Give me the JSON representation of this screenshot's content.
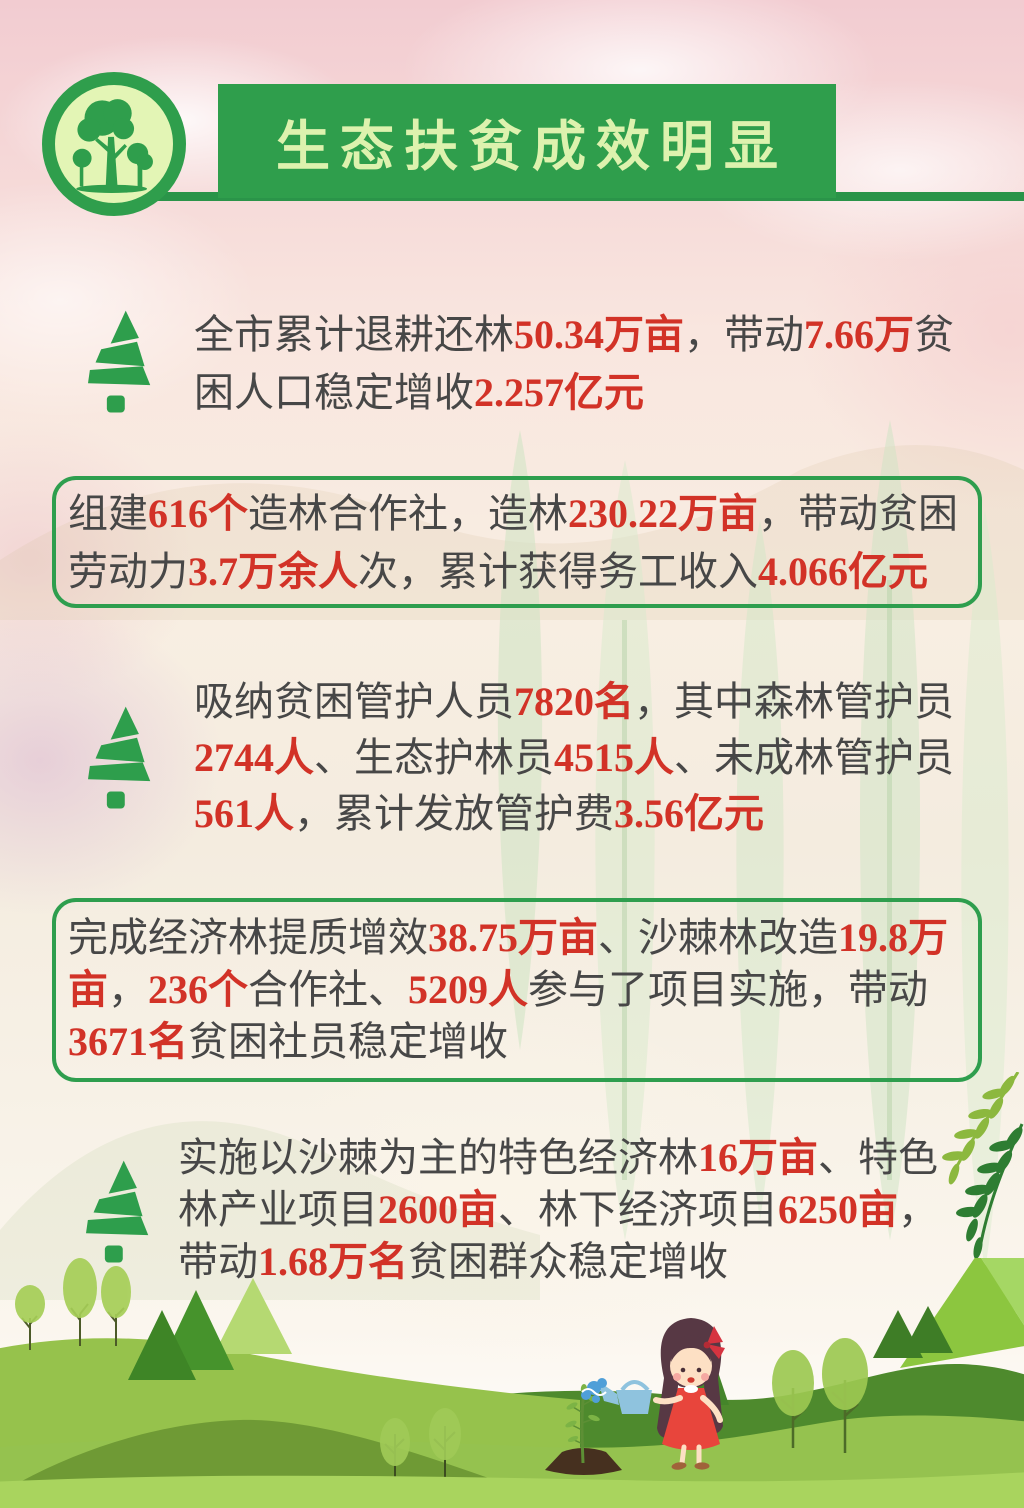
{
  "header": {
    "title": "生态扶贫成效明显"
  },
  "colors": {
    "banner_green": "#2f9e4c",
    "box_border_green": "#2e9e4e",
    "number_red": "#d23227",
    "body_text": "#474747",
    "title_text": "#ddf2ae"
  },
  "icons": {
    "logo": "trees-in-circle",
    "bullet": "pine-tree",
    "right_decor": "leaf-branches",
    "bottom": "landscape-with-girl-watering-sapling"
  },
  "blocks": [
    {
      "style": "bullet",
      "lines": [
        [
          {
            "t": "全市累计退耕还林"
          },
          {
            "t": "50.34万亩",
            "red": true
          },
          {
            "t": "，带动"
          },
          {
            "t": "7.66万",
            "red": true
          },
          {
            "t": "贫"
          }
        ],
        [
          {
            "t": "困人口稳定增收"
          },
          {
            "t": "2.257亿元",
            "red": true
          }
        ]
      ]
    },
    {
      "style": "box",
      "lines": [
        [
          {
            "t": "组建"
          },
          {
            "t": "616个",
            "red": true
          },
          {
            "t": "造林合作社，造林"
          },
          {
            "t": "230.22万亩",
            "red": true
          },
          {
            "t": "，带动贫困"
          }
        ],
        [
          {
            "t": "劳动力"
          },
          {
            "t": "3.7万余人",
            "red": true
          },
          {
            "t": "次，累计获得务工收入"
          },
          {
            "t": "4.066亿元",
            "red": true
          }
        ]
      ]
    },
    {
      "style": "bullet",
      "lines": [
        [
          {
            "t": "吸纳贫困管护人员"
          },
          {
            "t": "7820名",
            "red": true
          },
          {
            "t": "，其中森林管护员"
          }
        ],
        [
          {
            "t": "2744人",
            "red": true
          },
          {
            "t": "、生态护林员"
          },
          {
            "t": "4515人",
            "red": true
          },
          {
            "t": "、未成林管护员"
          }
        ],
        [
          {
            "t": "561人",
            "red": true
          },
          {
            "t": "，累计发放管护费"
          },
          {
            "t": "3.56亿元",
            "red": true
          }
        ]
      ]
    },
    {
      "style": "box",
      "lines": [
        [
          {
            "t": "完成经济林提质增效"
          },
          {
            "t": "38.75万亩",
            "red": true
          },
          {
            "t": "、沙棘林改造"
          },
          {
            "t": "19.8万",
            "red": true
          }
        ],
        [
          {
            "t": "亩",
            "red": true
          },
          {
            "t": "，"
          },
          {
            "t": "236个",
            "red": true
          },
          {
            "t": "合作社、"
          },
          {
            "t": "5209人",
            "red": true
          },
          {
            "t": "参与了项目实施，带动"
          }
        ],
        [
          {
            "t": "3671名",
            "red": true
          },
          {
            "t": "贫困社员稳定增收"
          }
        ]
      ]
    },
    {
      "style": "bullet",
      "lines": [
        [
          {
            "t": "实施以沙棘为主的特色经济林"
          },
          {
            "t": "16万亩",
            "red": true
          },
          {
            "t": "、特色"
          }
        ],
        [
          {
            "t": "林产业项目"
          },
          {
            "t": "2600亩",
            "red": true
          },
          {
            "t": "、林下经济项目"
          },
          {
            "t": "6250亩",
            "red": true
          },
          {
            "t": "，"
          }
        ],
        [
          {
            "t": "带动"
          },
          {
            "t": "1.68万名",
            "red": true
          },
          {
            "t": "贫困群众稳定增收"
          }
        ]
      ]
    }
  ]
}
